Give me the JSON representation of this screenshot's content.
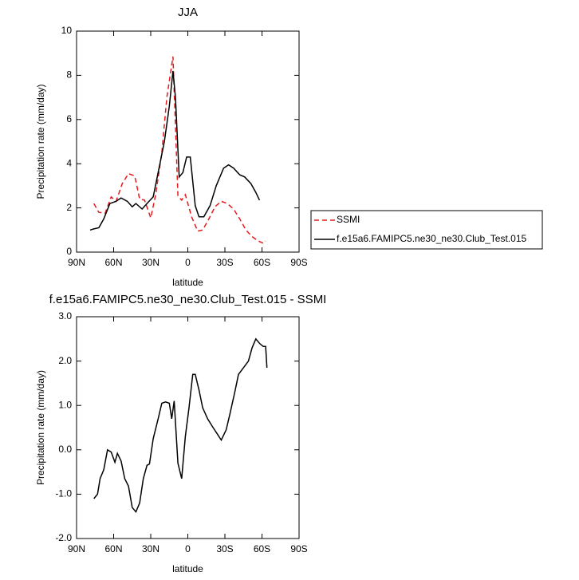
{
  "chart_data": [
    {
      "type": "line",
      "title": "JJA",
      "xlabel": "latitude",
      "ylabel": "Precipitation rate (mm/day)",
      "xlim": [
        90,
        -90
      ],
      "xticks": [
        {
          "value": 90,
          "label": "90N"
        },
        {
          "value": 60,
          "label": "60N"
        },
        {
          "value": 30,
          "label": "30N"
        },
        {
          "value": 0,
          "label": "0"
        },
        {
          "value": -30,
          "label": "30S"
        },
        {
          "value": -60,
          "label": "60S"
        },
        {
          "value": -90,
          "label": "90S"
        }
      ],
      "ylim": [
        0,
        10
      ],
      "yticks": [
        0,
        2,
        4,
        6,
        8,
        10
      ],
      "legend": "right",
      "series": [
        {
          "name": "SSMI",
          "color": "#e41a1c",
          "dashed": true,
          "x": [
            76,
            72,
            67,
            62,
            58,
            53,
            48,
            43,
            39,
            35,
            30,
            26,
            21,
            17,
            12,
            8,
            5,
            2,
            -3,
            -8,
            -12,
            -17,
            -22,
            -27,
            -32,
            -37,
            -42,
            -47,
            -52,
            -57,
            -61,
            -63
          ],
          "values": [
            2.2,
            1.8,
            1.75,
            2.5,
            2.3,
            3.1,
            3.55,
            3.45,
            2.4,
            2.35,
            1.55,
            2.6,
            4.5,
            7.0,
            8.85,
            2.55,
            2.35,
            2.6,
            1.6,
            0.95,
            1.0,
            1.5,
            2.05,
            2.3,
            2.2,
            1.95,
            1.5,
            1.0,
            0.7,
            0.5,
            0.4,
            0.5
          ]
        },
        {
          "name": "f.e15a6.FAMIPC5.ne30_ne30.Club_Test.015",
          "color": "#000000",
          "dashed": false,
          "x": [
            79,
            76,
            72,
            68,
            63,
            58,
            54,
            49,
            45,
            42,
            37,
            33,
            28,
            24,
            19,
            15,
            12,
            10,
            7,
            4,
            1,
            -2,
            -6,
            -9,
            -13,
            -18,
            -23,
            -29,
            -33,
            -37,
            -42,
            -46,
            -51,
            -55,
            -58
          ],
          "values": [
            1.0,
            1.05,
            1.1,
            1.5,
            2.2,
            2.3,
            2.45,
            2.3,
            2.05,
            2.2,
            1.95,
            2.2,
            2.5,
            3.6,
            5.0,
            6.6,
            8.2,
            7.0,
            3.4,
            3.6,
            4.3,
            4.3,
            2.1,
            1.6,
            1.6,
            2.1,
            3.0,
            3.8,
            3.95,
            3.8,
            3.5,
            3.4,
            3.1,
            2.7,
            2.35
          ]
        }
      ]
    },
    {
      "type": "line",
      "title": "f.e15a6.FAMIPC5.ne30_ne30.Club_Test.015 - SSMI",
      "xlabel": "latitude",
      "ylabel": "Precipitation rate (mm/day)",
      "xlim": [
        90,
        -90
      ],
      "xticks": [
        {
          "value": 90,
          "label": "90N"
        },
        {
          "value": 60,
          "label": "60N"
        },
        {
          "value": 30,
          "label": "30N"
        },
        {
          "value": 0,
          "label": "0"
        },
        {
          "value": -30,
          "label": "30S"
        },
        {
          "value": -60,
          "label": "60S"
        },
        {
          "value": -90,
          "label": "90S"
        }
      ],
      "ylim": [
        -2,
        3
      ],
      "yticks": [
        {
          "value": -2,
          "label": "-2.0"
        },
        {
          "value": -1,
          "label": "-1.0"
        },
        {
          "value": 0,
          "label": "0.0"
        },
        {
          "value": 1,
          "label": "1.0"
        },
        {
          "value": 2,
          "label": "2.0"
        },
        {
          "value": 3,
          "label": "3.0"
        }
      ],
      "series": [
        {
          "color": "#000000",
          "dashed": false,
          "x": [
            76,
            73,
            71,
            68,
            65,
            62,
            59,
            57,
            54,
            51,
            48,
            45,
            42,
            39,
            36,
            33,
            31,
            28,
            24,
            21,
            18,
            15,
            13,
            11,
            8,
            5,
            2,
            -1,
            -4,
            -6,
            -9,
            -12,
            -16,
            -20,
            -24,
            -27,
            -31,
            -34,
            -38,
            -41,
            -45,
            -49,
            -52,
            -55,
            -58,
            -61,
            -63,
            -64
          ],
          "values": [
            -1.1,
            -1.0,
            -0.65,
            -0.45,
            0.0,
            -0.05,
            -0.28,
            -0.08,
            -0.25,
            -0.65,
            -0.82,
            -1.3,
            -1.4,
            -1.2,
            -0.65,
            -0.35,
            -0.32,
            0.25,
            0.7,
            1.05,
            1.08,
            1.05,
            0.7,
            1.1,
            -0.3,
            -0.65,
            0.3,
            0.95,
            1.7,
            1.7,
            1.35,
            0.95,
            0.7,
            0.52,
            0.35,
            0.22,
            0.45,
            0.8,
            1.3,
            1.7,
            1.85,
            2.0,
            2.3,
            2.5,
            2.4,
            2.33,
            2.33,
            1.85
          ]
        }
      ]
    }
  ]
}
